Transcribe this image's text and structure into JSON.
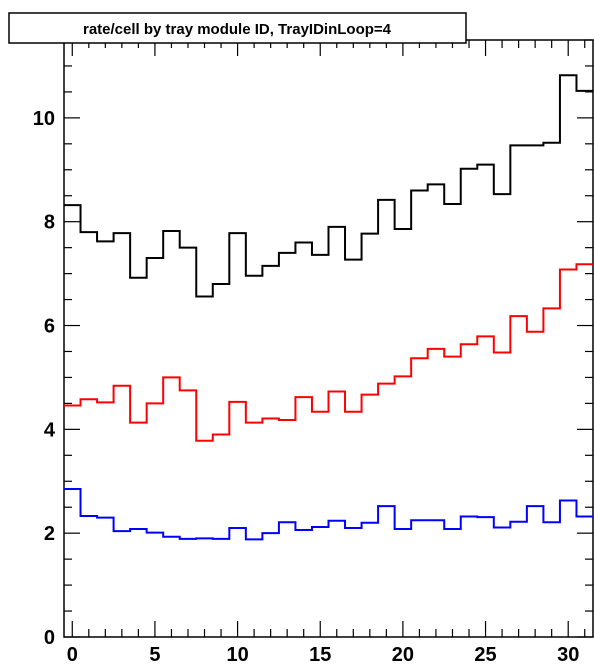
{
  "chart_data": {
    "type": "histogram-step",
    "title": "rate/cell by tray module ID, TrayIDinLoop=4",
    "xlabel": "",
    "ylabel": "",
    "xlim": [
      -0.5,
      31.5
    ],
    "ylim": [
      0,
      11.5
    ],
    "x_ticks": [
      0,
      5,
      10,
      15,
      20,
      25,
      30
    ],
    "y_ticks": [
      0,
      2,
      4,
      6,
      8,
      10
    ],
    "grid": false,
    "legend": "none",
    "bin_width": 1,
    "bin_start": -0.5,
    "series": [
      {
        "color": "#000000",
        "values": [
          8.32,
          7.8,
          7.62,
          7.78,
          6.92,
          7.3,
          7.82,
          7.5,
          6.56,
          6.8,
          7.78,
          6.96,
          7.15,
          7.4,
          7.6,
          7.36,
          7.9,
          7.27,
          7.77,
          8.42,
          7.86,
          8.6,
          8.72,
          8.34,
          9.02,
          9.1,
          8.53,
          9.47,
          9.47,
          9.52,
          10.82,
          10.52
        ]
      },
      {
        "color": "#ff0000",
        "values": [
          4.46,
          4.58,
          4.52,
          4.84,
          4.13,
          4.5,
          5.0,
          4.75,
          3.78,
          3.9,
          4.53,
          4.13,
          4.21,
          4.18,
          4.62,
          4.34,
          4.73,
          4.34,
          4.67,
          4.88,
          5.02,
          5.37,
          5.55,
          5.4,
          5.64,
          5.79,
          5.48,
          6.18,
          5.88,
          6.33,
          7.08,
          7.18
        ]
      },
      {
        "color": "#0000ff",
        "values": [
          2.85,
          2.33,
          2.3,
          2.04,
          2.08,
          2.01,
          1.93,
          1.89,
          1.9,
          1.89,
          2.1,
          1.88,
          2.0,
          2.21,
          2.06,
          2.12,
          2.24,
          2.1,
          2.2,
          2.52,
          2.08,
          2.25,
          2.25,
          2.08,
          2.32,
          2.31,
          2.11,
          2.22,
          2.52,
          2.21,
          2.63,
          2.32
        ]
      }
    ]
  }
}
